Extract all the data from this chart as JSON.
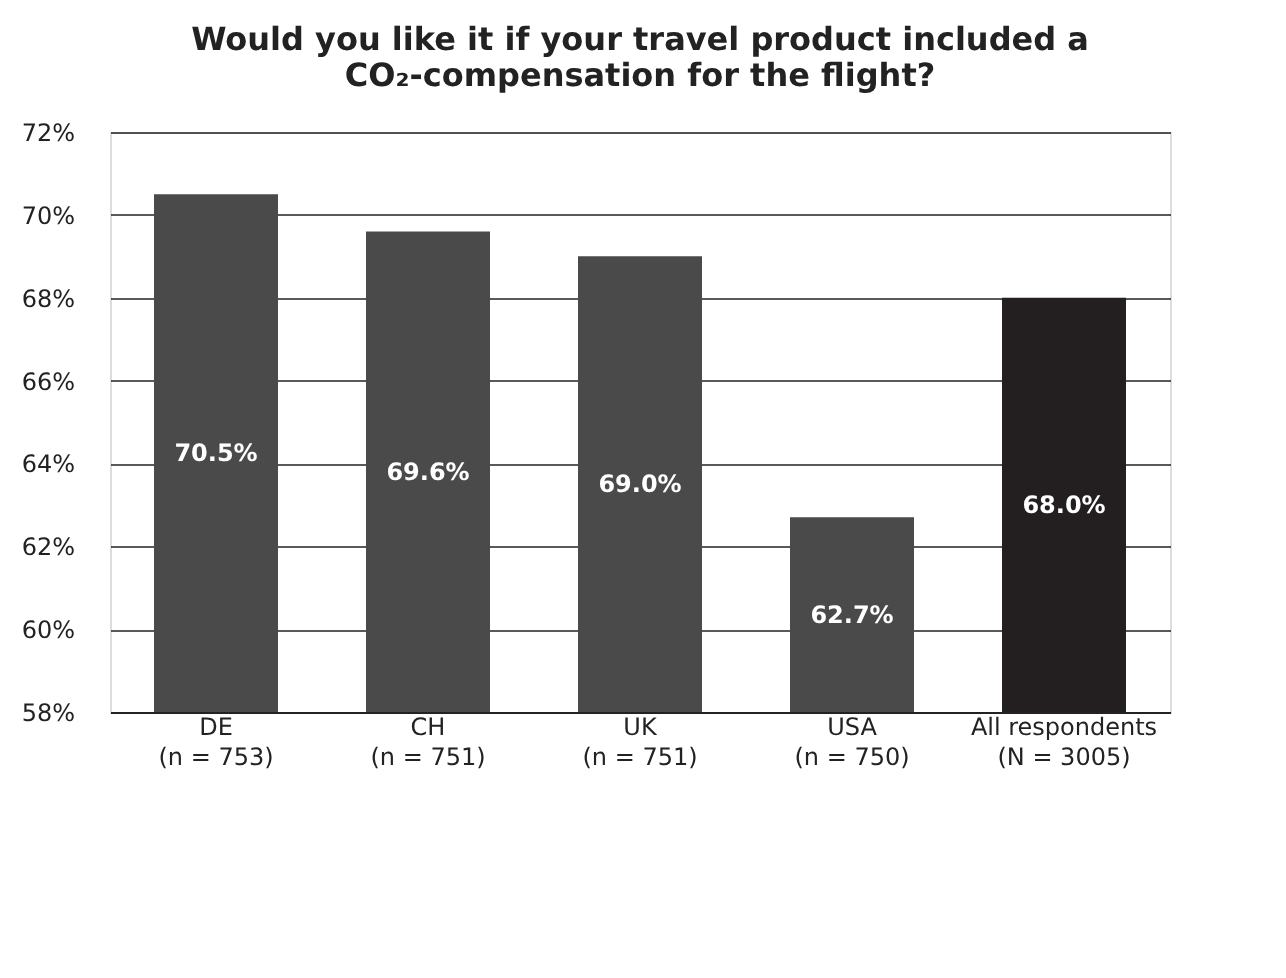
{
  "chart_data": {
    "type": "bar",
    "title": "Would you like it if your travel product included a\nCO₂-compensation for the flight?",
    "categories": [
      "DE\n(n = 753)",
      "CH\n(n = 751)",
      "UK\n(n = 751)",
      "USA\n(n = 750)",
      "All respondents\n(N = 3005)"
    ],
    "values": [
      70.5,
      69.6,
      69.0,
      62.7,
      68.0
    ],
    "colors": [
      "#4a4a4a",
      "#4a4a4a",
      "#4a4a4a",
      "#4a4a4a",
      "#231f20"
    ],
    "value_labels": [
      "70.5%",
      "69.6%",
      "69.0%",
      "62.7%",
      "68.0%"
    ],
    "ylim": [
      58,
      72
    ],
    "yticks": [
      {
        "value": 58,
        "label": "58%"
      },
      {
        "value": 60,
        "label": "60%"
      },
      {
        "value": 62,
        "label": "62%"
      },
      {
        "value": 64,
        "label": "64%"
      },
      {
        "value": 66,
        "label": "66%"
      },
      {
        "value": 68,
        "label": "68%"
      },
      {
        "value": 70,
        "label": "70%"
      },
      {
        "value": 72,
        "label": "72%"
      }
    ],
    "grid": "y"
  }
}
